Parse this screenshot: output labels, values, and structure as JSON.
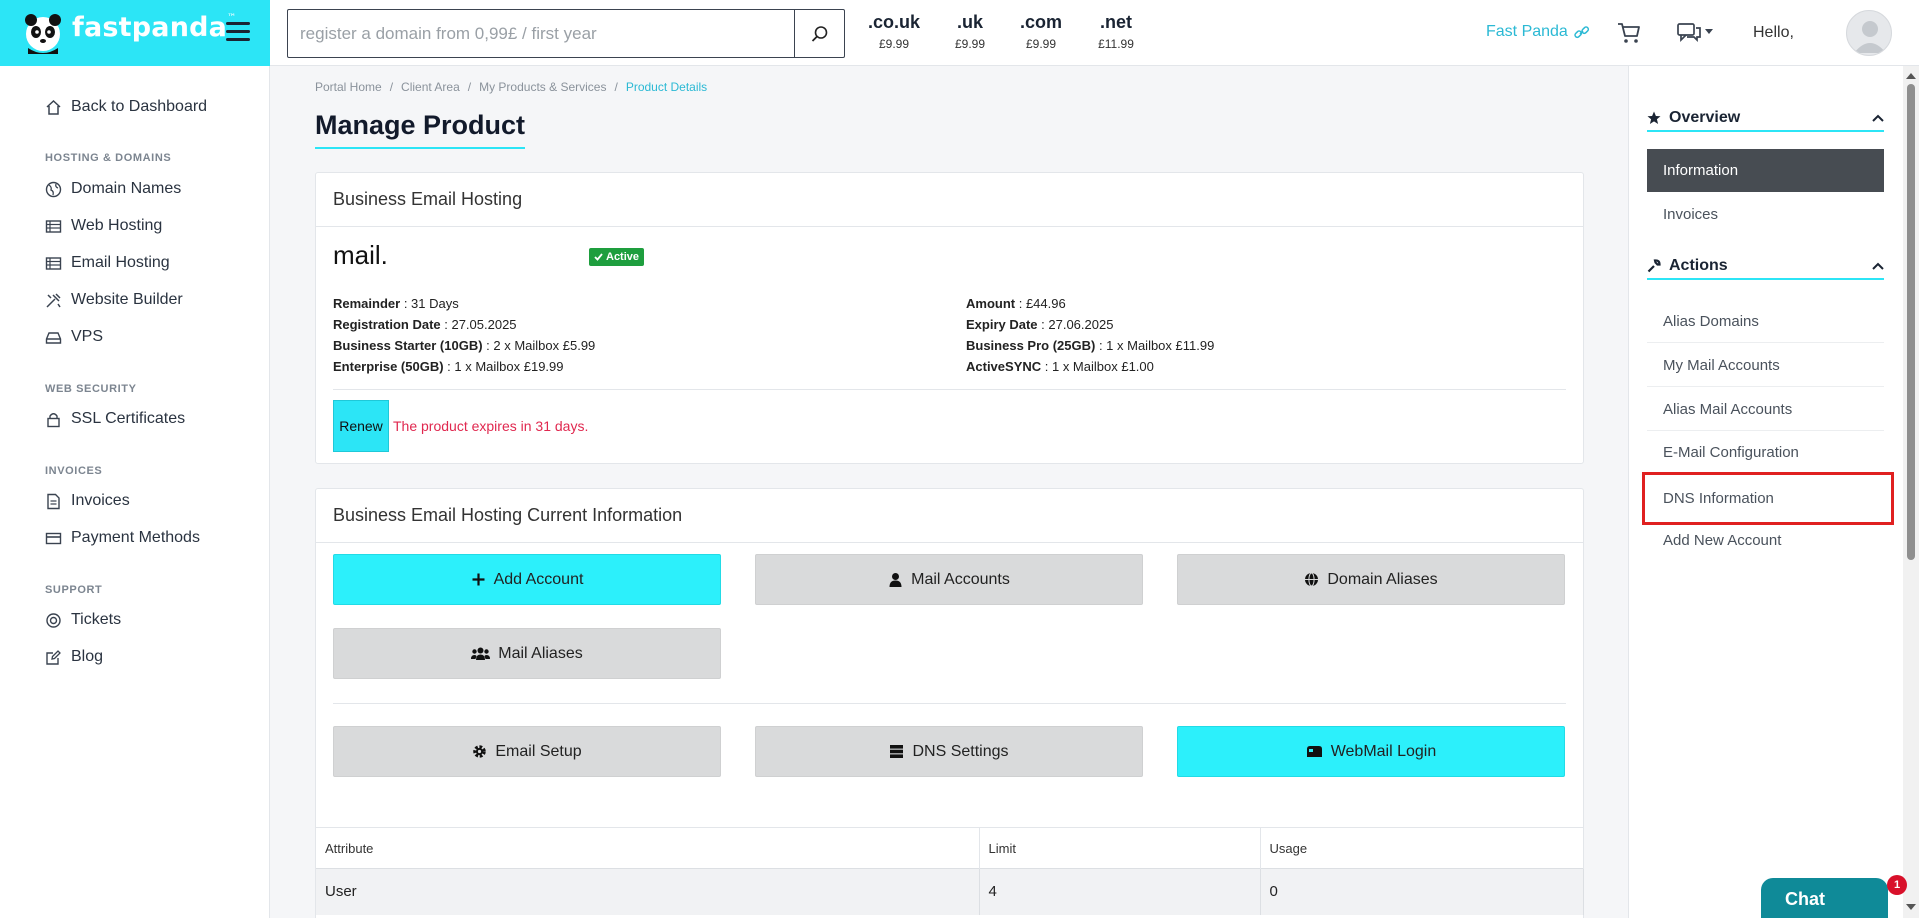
{
  "header": {
    "brand_name": "fastpanda",
    "brand_tm": "™",
    "search": {
      "placeholder": "register a domain from 0,99£ / first year",
      "value": ""
    },
    "tlds": [
      {
        "ext": ".co.uk",
        "price": "£9.99"
      },
      {
        "ext": ".uk",
        "price": "£9.99"
      },
      {
        "ext": ".com",
        "price": "£9.99"
      },
      {
        "ext": ".net",
        "price": "£11.99"
      }
    ],
    "account_link": "Fast Panda",
    "greeting": "Hello,",
    "accent_color": "#2ce5f6"
  },
  "sidebar": {
    "back": "Back to Dashboard",
    "sections": {
      "hosting": "HOSTING & DOMAINS",
      "security": "WEB SECURITY",
      "invoices": "INVOICES",
      "support": "SUPPORT"
    },
    "items": {
      "domain_names": "Domain Names",
      "web_hosting": "Web Hosting",
      "email_hosting": "Email Hosting",
      "website_builder": "Website Builder",
      "vps": "VPS",
      "ssl": "SSL Certificates",
      "invoices": "Invoices",
      "payment_methods": "Payment Methods",
      "tickets": "Tickets",
      "blog": "Blog"
    }
  },
  "breadcrumb": {
    "items": [
      "Portal Home",
      "Client Area",
      "My Products & Services"
    ],
    "active": "Product Details",
    "separator": "/"
  },
  "page_title": "Manage Product",
  "product_card": {
    "title": "Business Email Hosting",
    "product_name": "mail.",
    "status": "Active",
    "left": [
      {
        "label": "Remainder",
        "value": " : 31 Days"
      },
      {
        "label": "Registration Date",
        "value": " : 27.05.2025"
      },
      {
        "label": "Business Starter (10GB)",
        "value": " : 2 x Mailbox £5.99"
      },
      {
        "label": "Enterprise (50GB)",
        "value": " : 1 x Mailbox £19.99"
      }
    ],
    "right": [
      {
        "label": "Amount",
        "value": " : £44.96"
      },
      {
        "label": "Expiry Date",
        "value": " : 27.06.2025"
      },
      {
        "label": "Business Pro (25GB)",
        "value": " : 1 x Mailbox £11.99"
      },
      {
        "label": "ActiveSYNC",
        "value": " : 1 x Mailbox £1.00"
      }
    ],
    "renew_label": "Renew",
    "expire_message": "The product expires in 31 days."
  },
  "info_card": {
    "title": "Business Email Hosting Current Information",
    "buttons": {
      "add_account": "Add Account",
      "mail_accounts": "Mail Accounts",
      "domain_aliases": "Domain Aliases",
      "mail_aliases": "Mail Aliases",
      "email_setup": "Email Setup",
      "dns_settings": "DNS Settings",
      "webmail_login": "WebMail Login"
    },
    "table": {
      "headers": [
        "Attribute",
        "Limit",
        "Usage"
      ],
      "rows": [
        [
          "User",
          "4",
          "0"
        ]
      ]
    }
  },
  "right_panel": {
    "overview_title": "Overview",
    "overview_items": [
      "Information",
      "Invoices"
    ],
    "actions_title": "Actions",
    "action_items": [
      "Alias Domains",
      "My Mail Accounts",
      "Alias Mail Accounts",
      "E-Mail Configuration",
      "DNS Information",
      "Add New Account"
    ]
  },
  "chat": {
    "label": "Chat",
    "badge": "1"
  }
}
